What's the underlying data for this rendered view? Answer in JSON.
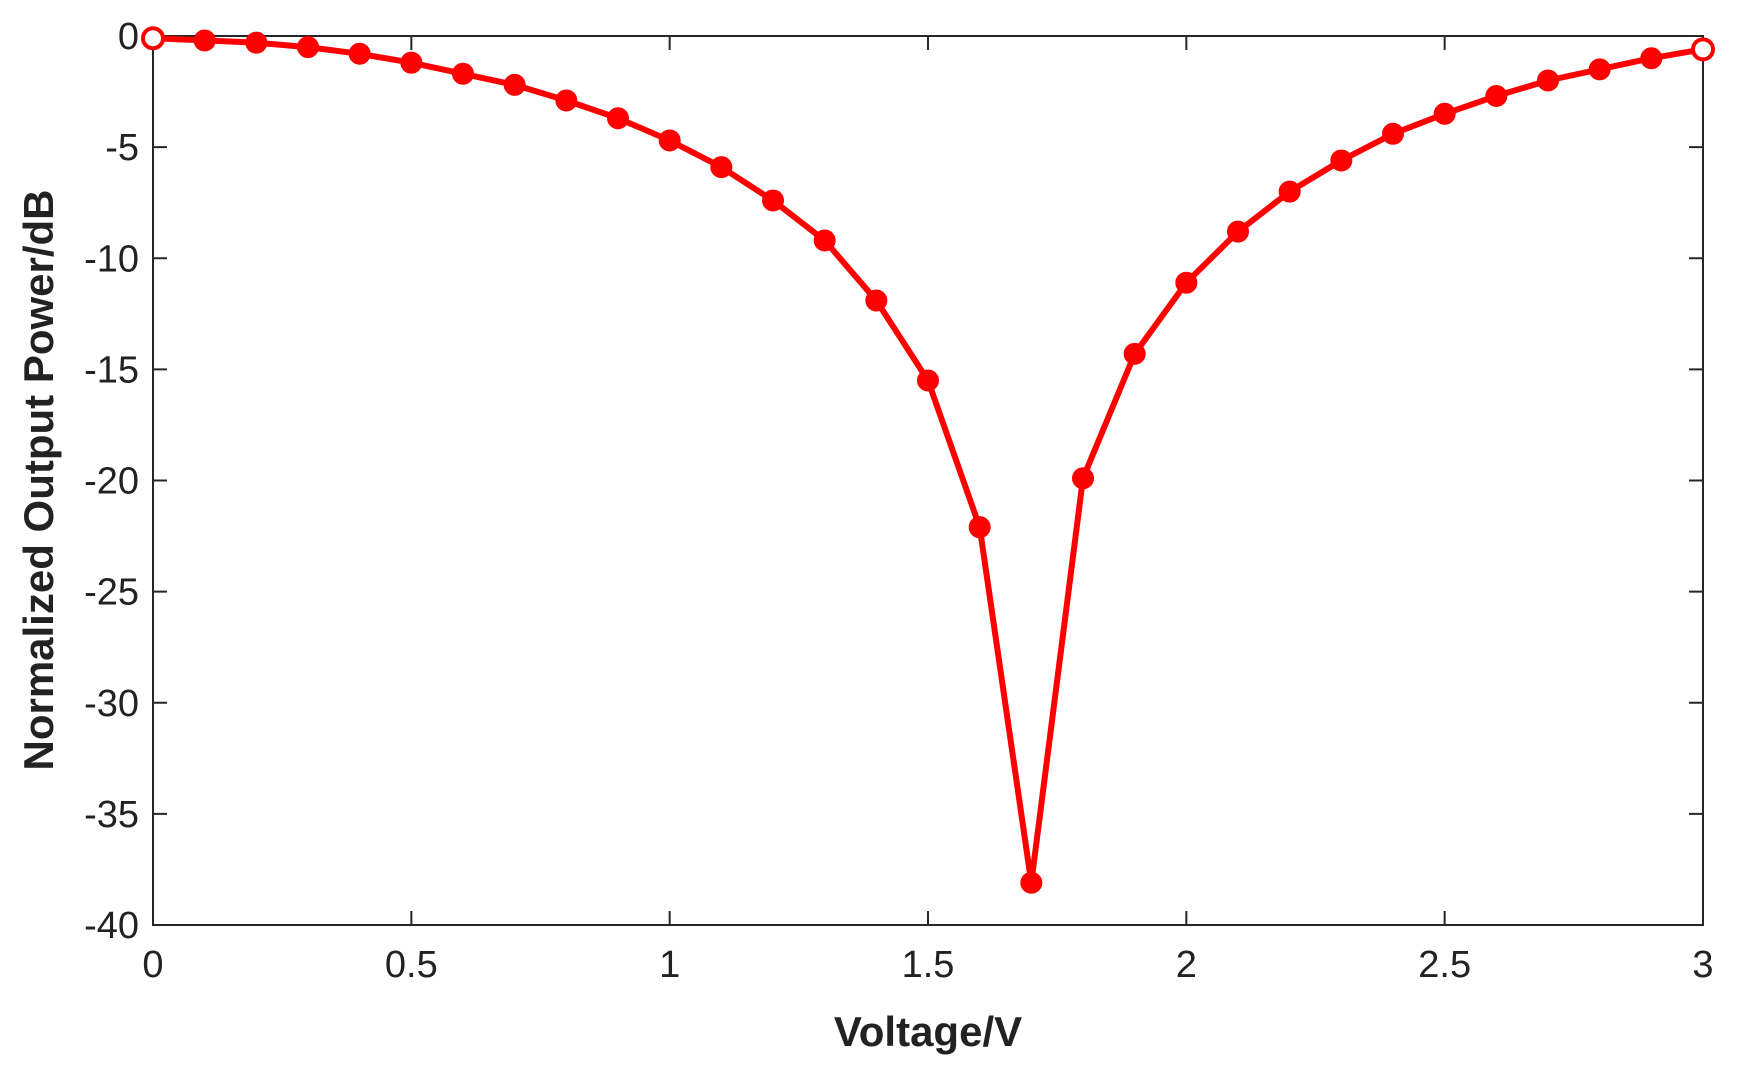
{
  "chart_data": {
    "type": "line",
    "title": "",
    "xlabel": "Voltage/V",
    "ylabel": "Normalized Output Power/dB",
    "xlim": [
      0,
      3
    ],
    "ylim": [
      -40,
      0
    ],
    "xticks": [
      "0",
      "0.5",
      "1",
      "1.5",
      "2",
      "2.5",
      "3"
    ],
    "xtick_values": [
      0,
      0.5,
      1,
      1.5,
      2,
      2.5,
      3
    ],
    "yticks": [
      "0",
      "-5",
      "-10",
      "-15",
      "-20",
      "-25",
      "-30",
      "-35",
      "-40"
    ],
    "ytick_values": [
      0,
      -5,
      -10,
      -15,
      -20,
      -25,
      -30,
      -35,
      -40
    ],
    "grid": false,
    "legend": "none",
    "series": [
      {
        "color": "#ff0000",
        "marker": "filled-circle",
        "x": [
          0,
          0.1,
          0.2,
          0.3,
          0.4,
          0.5,
          0.6,
          0.7,
          0.8,
          0.9,
          1.0,
          1.1,
          1.2,
          1.3,
          1.4,
          1.5,
          1.6,
          1.7,
          1.8,
          1.9,
          2.0,
          2.1,
          2.2,
          2.3,
          2.4,
          2.5,
          2.6,
          2.7,
          2.8,
          2.9,
          3.0
        ],
        "y": [
          -0.1,
          -0.2,
          -0.3,
          -0.5,
          -0.8,
          -1.2,
          -1.7,
          -2.2,
          -2.9,
          -3.7,
          -4.7,
          -5.9,
          -7.4,
          -9.2,
          -11.9,
          -15.5,
          -22.1,
          -38.1,
          -19.9,
          -14.3,
          -11.1,
          -8.8,
          -7.0,
          -5.6,
          -4.4,
          -3.5,
          -2.7,
          -2.0,
          -1.5,
          -1.0,
          -0.6
        ]
      }
    ]
  }
}
